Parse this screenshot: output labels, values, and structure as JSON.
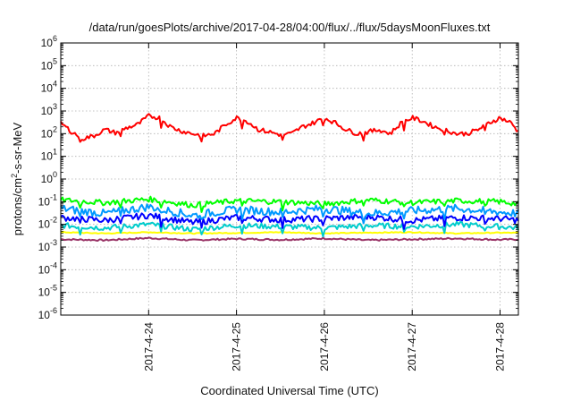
{
  "chart_data": {
    "type": "line",
    "title": "/data/run/goesPlots/archive/2017-04-28/04:00/flux/../flux/5daysMoonFluxes.txt",
    "xlabel": "Coordinated Universal Time (UTC)",
    "ylabel_parts": {
      "base": "protons/cm",
      "sup": "2",
      "rest": "-s-sr-MeV"
    },
    "y_scale": "log",
    "ylim": [
      1e-06,
      1000000.0
    ],
    "y_ticks": [
      {
        "value": 1000000.0,
        "base": "10",
        "exp": "6"
      },
      {
        "value": 100000.0,
        "base": "10",
        "exp": "5"
      },
      {
        "value": 10000.0,
        "base": "10",
        "exp": "4"
      },
      {
        "value": 1000.0,
        "base": "10",
        "exp": "3"
      },
      {
        "value": 100.0,
        "base": "10",
        "exp": "2"
      },
      {
        "value": 10.0,
        "base": "10",
        "exp": "1"
      },
      {
        "value": 1.0,
        "base": "10",
        "exp": "0"
      },
      {
        "value": 0.1,
        "base": "10",
        "exp": "-1"
      },
      {
        "value": 0.01,
        "base": "10",
        "exp": "-2"
      },
      {
        "value": 0.001,
        "base": "10",
        "exp": "-3"
      },
      {
        "value": 0.0001,
        "base": "10",
        "exp": "-4"
      },
      {
        "value": 1e-05,
        "base": "10",
        "exp": "-5"
      },
      {
        "value": 1e-06,
        "base": "10",
        "exp": "-6"
      }
    ],
    "xlim": [
      "2017-04-23 00:00",
      "2017-04-28 05:00"
    ],
    "x_ticks": [
      {
        "value": "2017-04-24 00:00",
        "label": "2017-4-24"
      },
      {
        "value": "2017-04-25 00:00",
        "label": "2017-4-25"
      },
      {
        "value": "2017-04-26 00:00",
        "label": "2017-4-26"
      },
      {
        "value": "2017-04-27 00:00",
        "label": "2017-4-27"
      },
      {
        "value": "2017-04-28 00:00",
        "label": "2017-4-28"
      }
    ],
    "grid": true,
    "legend": "none",
    "series": [
      {
        "color": "#ff0000",
        "x": [
          "2017-04-23 00:00",
          "2017-04-23 03:00",
          "2017-04-23 06:00",
          "2017-04-23 09:00",
          "2017-04-23 12:00",
          "2017-04-23 15:00",
          "2017-04-23 18:00",
          "2017-04-23 21:00",
          "2017-04-24 00:00",
          "2017-04-24 03:00",
          "2017-04-24 06:00",
          "2017-04-24 09:00",
          "2017-04-24 12:00",
          "2017-04-24 15:00",
          "2017-04-24 18:00",
          "2017-04-24 21:00",
          "2017-04-25 00:00",
          "2017-04-25 03:00",
          "2017-04-25 06:00",
          "2017-04-25 09:00",
          "2017-04-25 12:00",
          "2017-04-25 15:00",
          "2017-04-25 18:00",
          "2017-04-25 21:00",
          "2017-04-26 00:00",
          "2017-04-26 03:00",
          "2017-04-26 06:00",
          "2017-04-26 09:00",
          "2017-04-26 12:00",
          "2017-04-26 15:00",
          "2017-04-26 18:00",
          "2017-04-26 21:00",
          "2017-04-27 00:00",
          "2017-04-27 03:00",
          "2017-04-27 06:00",
          "2017-04-27 09:00",
          "2017-04-27 12:00",
          "2017-04-27 15:00",
          "2017-04-27 18:00",
          "2017-04-27 21:00",
          "2017-04-28 00:00",
          "2017-04-28 03:00",
          "2017-04-28 05:00"
        ],
        "values": [
          300,
          120,
          60,
          80,
          150,
          110,
          180,
          250,
          600,
          500,
          200,
          130,
          100,
          80,
          100,
          250,
          500,
          350,
          150,
          120,
          90,
          100,
          200,
          300,
          500,
          300,
          150,
          100,
          120,
          150,
          100,
          300,
          500,
          350,
          200,
          150,
          100,
          100,
          150,
          300,
          500,
          300,
          120
        ]
      },
      {
        "color": "#00ff00",
        "x": [
          "2017-04-23 00:00",
          "2017-04-23 12:00",
          "2017-04-24 00:00",
          "2017-04-24 12:00",
          "2017-04-25 00:00",
          "2017-04-25 12:00",
          "2017-04-26 00:00",
          "2017-04-26 12:00",
          "2017-04-27 00:00",
          "2017-04-27 12:00",
          "2017-04-28 00:00",
          "2017-04-28 05:00"
        ],
        "values": [
          0.12,
          0.09,
          0.13,
          0.07,
          0.11,
          0.1,
          0.08,
          0.12,
          0.09,
          0.11,
          0.1,
          0.08
        ]
      },
      {
        "color": "#0099ff",
        "x": [
          "2017-04-23 00:00",
          "2017-04-23 12:00",
          "2017-04-24 00:00",
          "2017-04-24 12:00",
          "2017-04-25 00:00",
          "2017-04-25 12:00",
          "2017-04-26 00:00",
          "2017-04-26 12:00",
          "2017-04-27 00:00",
          "2017-04-27 12:00",
          "2017-04-28 00:00",
          "2017-04-28 05:00"
        ],
        "values": [
          0.05,
          0.03,
          0.06,
          0.025,
          0.045,
          0.035,
          0.05,
          0.03,
          0.04,
          0.05,
          0.035,
          0.03
        ]
      },
      {
        "color": "#0000ff",
        "x": [
          "2017-04-23 00:00",
          "2017-04-23 12:00",
          "2017-04-24 00:00",
          "2017-04-24 12:00",
          "2017-04-25 00:00",
          "2017-04-25 12:00",
          "2017-04-26 00:00",
          "2017-04-26 12:00",
          "2017-04-27 00:00",
          "2017-04-27 12:00",
          "2017-04-28 00:00",
          "2017-04-28 05:00"
        ],
        "values": [
          0.02,
          0.015,
          0.025,
          0.012,
          0.02,
          0.016,
          0.018,
          0.022,
          0.015,
          0.02,
          0.018,
          0.015
        ]
      },
      {
        "color": "#00cccc",
        "x": [
          "2017-04-23 00:00",
          "2017-04-23 12:00",
          "2017-04-24 00:00",
          "2017-04-24 12:00",
          "2017-04-25 00:00",
          "2017-04-25 12:00",
          "2017-04-26 00:00",
          "2017-04-26 12:00",
          "2017-04-27 00:00",
          "2017-04-27 12:00",
          "2017-04-28 00:00",
          "2017-04-28 05:00"
        ],
        "values": [
          0.009,
          0.007,
          0.01,
          0.006,
          0.009,
          0.008,
          0.007,
          0.009,
          0.008,
          0.01,
          0.008,
          0.007
        ]
      },
      {
        "color": "#ffff00",
        "x": [
          "2017-04-23 00:00",
          "2017-04-23 12:00",
          "2017-04-24 00:00",
          "2017-04-24 12:00",
          "2017-04-25 00:00",
          "2017-04-25 12:00",
          "2017-04-26 00:00",
          "2017-04-26 12:00",
          "2017-04-27 00:00",
          "2017-04-27 12:00",
          "2017-04-28 00:00",
          "2017-04-28 05:00"
        ],
        "values": [
          0.0045,
          0.004,
          0.0045,
          0.004,
          0.0042,
          0.0045,
          0.004,
          0.0043,
          0.0045,
          0.004,
          0.0043,
          0.0042
        ]
      },
      {
        "color": "#993366",
        "x": [
          "2017-04-23 00:00",
          "2017-04-23 12:00",
          "2017-04-24 00:00",
          "2017-04-24 12:00",
          "2017-04-25 00:00",
          "2017-04-25 12:00",
          "2017-04-26 00:00",
          "2017-04-26 12:00",
          "2017-04-27 00:00",
          "2017-04-27 12:00",
          "2017-04-28 00:00",
          "2017-04-28 05:00"
        ],
        "values": [
          0.0022,
          0.002,
          0.0025,
          0.002,
          0.0023,
          0.0021,
          0.0024,
          0.002,
          0.0022,
          0.0024,
          0.0021,
          0.0022
        ]
      }
    ]
  }
}
